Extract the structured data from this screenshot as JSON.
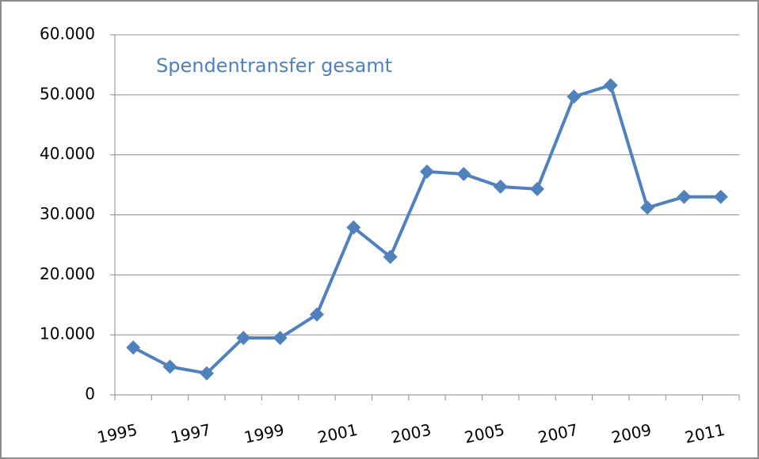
{
  "chart_data": {
    "type": "line",
    "title": "Spendentransfer gesamt",
    "categories": [
      "1995",
      null,
      "1997",
      null,
      "1999",
      null,
      "2001",
      null,
      "2003",
      null,
      "2005",
      null,
      "2007",
      null,
      "2009",
      null,
      "2011"
    ],
    "series": [
      {
        "name": "Spendentransfer gesamt",
        "color": "#4f81bd",
        "values": [
          7900,
          4700,
          3600,
          9500,
          9500,
          13400,
          27900,
          23000,
          37200,
          36800,
          34700,
          34300,
          49700,
          51600,
          31200,
          33000,
          33000
        ]
      }
    ],
    "ylim": [
      0,
      60000
    ],
    "yticks": [
      0,
      {
        "value": 10000,
        "label": "10.000"
      },
      {
        "value": 20000,
        "label": "20.000"
      },
      {
        "value": 30000,
        "label": "30.000"
      },
      {
        "value": 40000,
        "label": "40.000"
      },
      {
        "value": 50000,
        "label": "50.000"
      },
      {
        "value": 60000,
        "label": "60.000"
      }
    ],
    "grid": true
  }
}
